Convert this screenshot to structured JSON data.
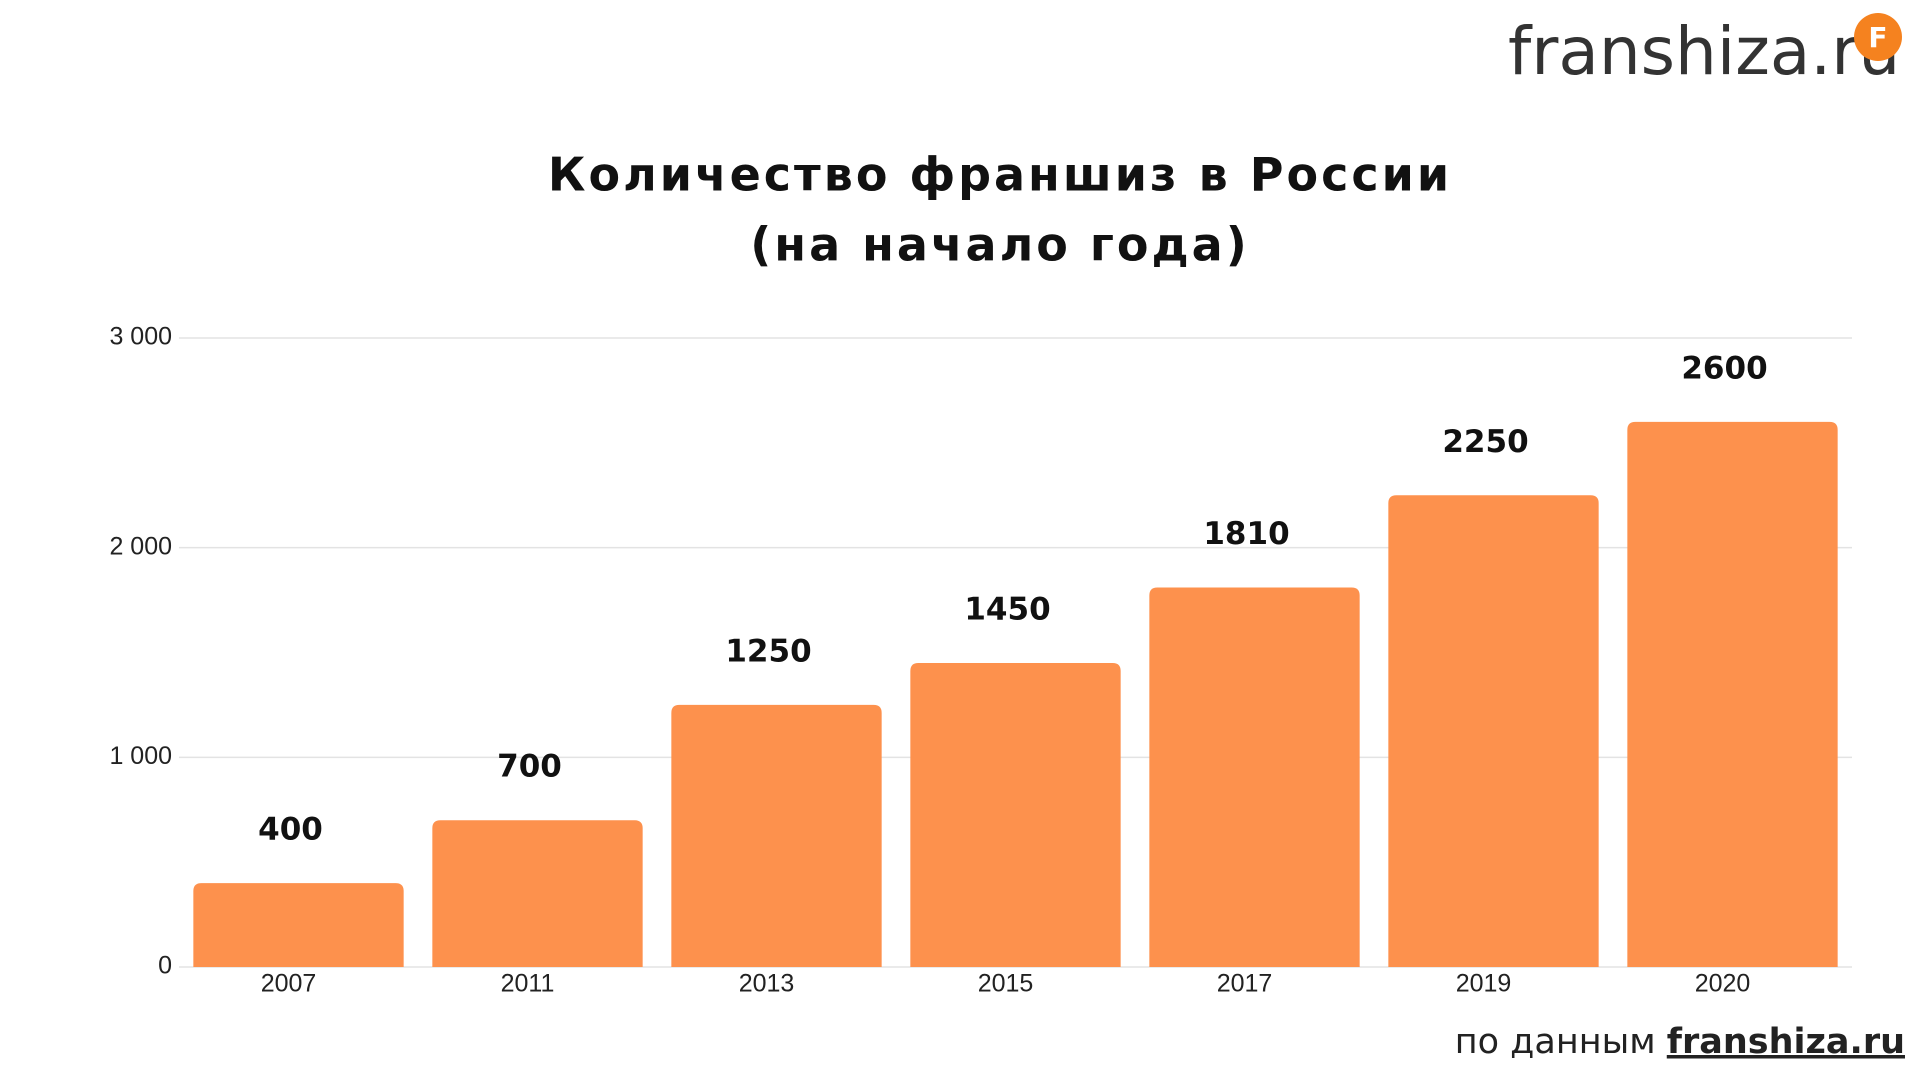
{
  "logo": {
    "text": "franshiza.ru",
    "icon": "F"
  },
  "source": {
    "prefix": "по данным",
    "link": "franshiza.ru"
  },
  "chart_data": {
    "type": "bar",
    "title": "Количество франшиз в России",
    "subtitle": "(на начало года)",
    "categories": [
      "2007",
      "2011",
      "2013",
      "2015",
      "2017",
      "2019",
      "2020"
    ],
    "values": [
      400,
      700,
      1250,
      1450,
      1810,
      2250,
      2600
    ],
    "color": "#fd914d",
    "ylim": [
      0,
      3000
    ],
    "yticks": [
      0,
      {
        "value": 1000,
        "label": "1 000"
      },
      {
        "value": 2000,
        "label": "2 000"
      },
      {
        "value": 3000,
        "label": "3 000"
      }
    ],
    "grid": true
  }
}
